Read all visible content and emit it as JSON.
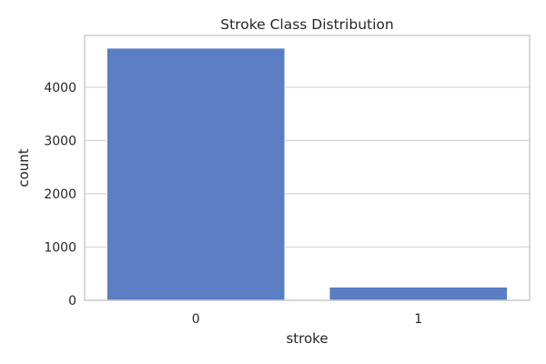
{
  "chart_data": {
    "type": "bar",
    "title": "Stroke Class Distribution",
    "xlabel": "stroke",
    "ylabel": "count",
    "categories": [
      "0",
      "1"
    ],
    "values": [
      4733,
      249
    ],
    "ylim": [
      0,
      4970
    ],
    "yticks": [
      0,
      1000,
      2000,
      3000,
      4000
    ],
    "grid": true,
    "bar_color": "#5a7dc4"
  }
}
